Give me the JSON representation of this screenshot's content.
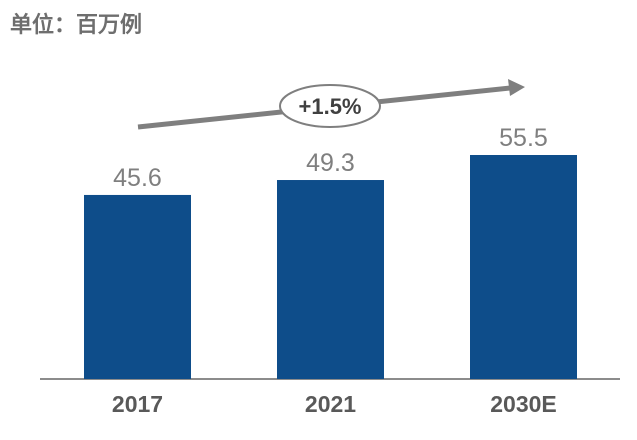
{
  "unit_label": "单位：百万例",
  "chart_data": {
    "type": "bar",
    "categories": [
      "2017",
      "2021",
      "2030E"
    ],
    "values": [
      45.6,
      49.3,
      55.5
    ],
    "value_labels": [
      "45.6",
      "49.3",
      "55.5"
    ],
    "ylim": [
      0,
      55.5
    ],
    "grid": false,
    "annotations": [
      {
        "text": "+1.5%",
        "kind": "growth-arrow"
      }
    ],
    "colors": {
      "bar": "#0e4d8a",
      "axis": "#8c8c8c",
      "arrow": "#7f7f7f",
      "value_text": "#7f7f7f",
      "tick_text": "#595959",
      "unit_text": "#6e6e6e"
    }
  }
}
